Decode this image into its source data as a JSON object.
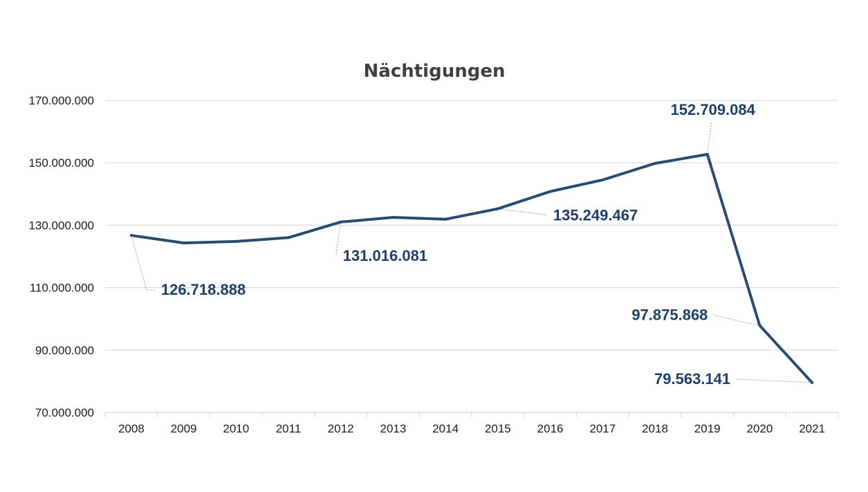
{
  "chart_data": {
    "type": "line",
    "title": "Nächtigungen",
    "xlabel": "",
    "ylabel": "",
    "x": [
      "2008",
      "2009",
      "2010",
      "2011",
      "2012",
      "2013",
      "2014",
      "2015",
      "2016",
      "2017",
      "2018",
      "2019",
      "2020",
      "2021"
    ],
    "series": [
      {
        "values": [
          126718888,
          124300000,
          124800000,
          126000000,
          131016081,
          132500000,
          131900000,
          135249467,
          140800000,
          144500000,
          149800000,
          152709084,
          97875868,
          79563141
        ]
      }
    ],
    "ylim": [
      70000000,
      170000000
    ],
    "y_ticks": [
      "70.000.000",
      "90.000.000",
      "110.000.000",
      "130.000.000",
      "150.000.000",
      "170.000.000"
    ],
    "y_tick_values": [
      70000000,
      90000000,
      110000000,
      130000000,
      150000000,
      170000000
    ],
    "data_labels": [
      {
        "index": 0,
        "text": "126.718.888"
      },
      {
        "index": 4,
        "text": "131.016.081"
      },
      {
        "index": 7,
        "text": "135.249.467"
      },
      {
        "index": 11,
        "text": "152.709.084"
      },
      {
        "index": 12,
        "text": "97.875.868"
      },
      {
        "index": 13,
        "text": "79.563.141"
      }
    ],
    "grid": true,
    "legend": "none",
    "colors": {
      "line": "#284b72",
      "label": "#1f3f66",
      "grid": "#d9d9d9",
      "leader": "#a6a6a6",
      "title": "#404040"
    }
  }
}
